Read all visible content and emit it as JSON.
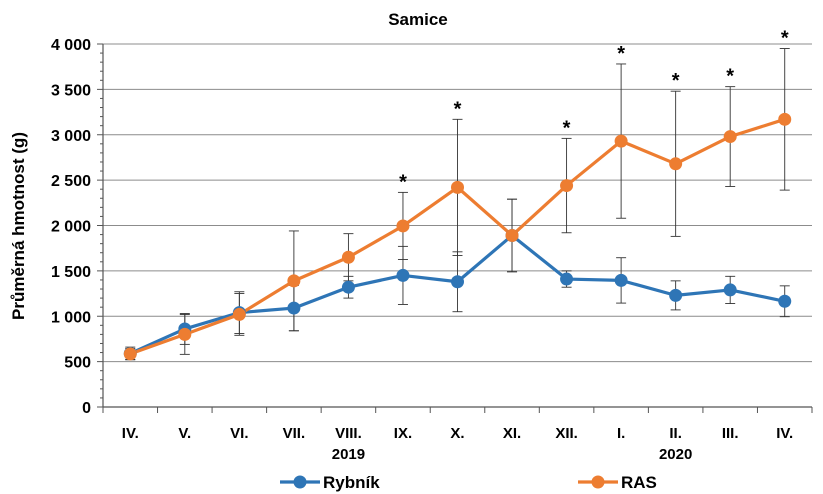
{
  "chart_data": {
    "type": "line",
    "title": "Samice",
    "ylabel": "Průměrná hmotnost (g)",
    "xlabel": "",
    "ylim": [
      0,
      4000
    ],
    "yticks": [
      0,
      500,
      1000,
      1500,
      2000,
      2500,
      3000,
      3500,
      4000
    ],
    "ytick_labels": [
      "0",
      "500",
      "1 000",
      "1 500",
      "2 000",
      "2 500",
      "3 000",
      "3 500",
      "4 000"
    ],
    "categories": [
      "IV.",
      "V.",
      "VI.",
      "VII.",
      "VIII.",
      "IX.",
      "X.",
      "XI.",
      "XII.",
      "I.",
      "II.",
      "III.",
      "IV."
    ],
    "year_labels": [
      {
        "label": "2019",
        "category_index": 4
      },
      {
        "label": "2020",
        "category_index": 10
      }
    ],
    "grid": "horizontal",
    "legend_position": "bottom",
    "significance_marker": "*",
    "significant_indices": [
      5,
      6,
      8,
      9,
      10,
      11,
      12
    ],
    "series": [
      {
        "name": "Rybník",
        "color": "#2e75b6",
        "values": [
          590,
          860,
          1040,
          1090,
          1320,
          1450,
          1380,
          1890,
          1410,
          1395,
          1230,
          1290,
          1165
        ],
        "error": [
          70,
          170,
          230,
          250,
          120,
          320,
          330,
          400,
          90,
          250,
          160,
          150,
          170
        ]
      },
      {
        "name": "RAS",
        "color": "#ed7d31",
        "values": [
          585,
          800,
          1020,
          1390,
          1650,
          1995,
          2420,
          1890,
          2440,
          2930,
          2680,
          2980,
          3170
        ],
        "error": [
          60,
          220,
          230,
          550,
          260,
          370,
          750,
          400,
          520,
          850,
          800,
          550,
          780
        ]
      }
    ]
  }
}
